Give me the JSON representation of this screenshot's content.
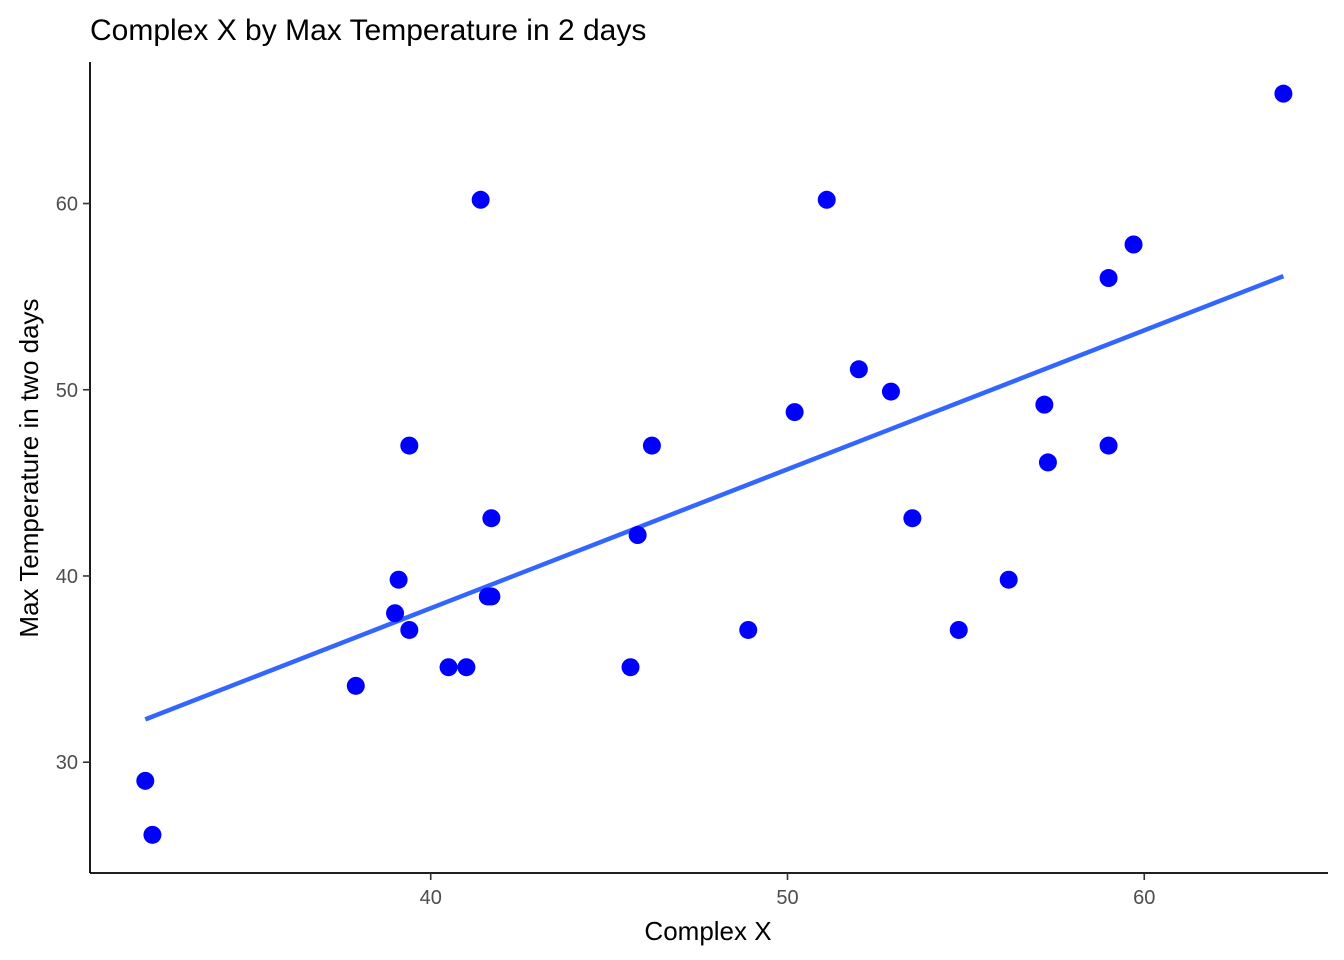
{
  "chart_data": {
    "type": "scatter",
    "title": "Complex X by Max Temperature in 2 days",
    "xlabel": "Complex X",
    "ylabel": "Max Temperature in two days",
    "xlim": [
      30.45,
      65.15
    ],
    "ylim": [
      24.05,
      67.6
    ],
    "xticks": [
      40,
      50,
      60
    ],
    "yticks": [
      30,
      40,
      50,
      60
    ],
    "grid": false,
    "legend": "none",
    "point_color": "#0000ff",
    "line_color": "#3366ff",
    "series": [
      {
        "points": [
          {
            "x": 32.0,
            "y": 29.0
          },
          {
            "x": 32.2,
            "y": 26.1
          },
          {
            "x": 37.9,
            "y": 34.1
          },
          {
            "x": 39.0,
            "y": 38.0
          },
          {
            "x": 39.1,
            "y": 39.8
          },
          {
            "x": 39.4,
            "y": 47.0
          },
          {
            "x": 39.4,
            "y": 37.1
          },
          {
            "x": 40.5,
            "y": 35.1
          },
          {
            "x": 41.0,
            "y": 35.1
          },
          {
            "x": 41.4,
            "y": 60.2
          },
          {
            "x": 41.6,
            "y": 38.9
          },
          {
            "x": 41.7,
            "y": 43.1
          },
          {
            "x": 41.7,
            "y": 38.9
          },
          {
            "x": 45.6,
            "y": 35.1
          },
          {
            "x": 45.8,
            "y": 42.2
          },
          {
            "x": 46.2,
            "y": 47.0
          },
          {
            "x": 48.9,
            "y": 37.1
          },
          {
            "x": 50.2,
            "y": 48.8
          },
          {
            "x": 51.1,
            "y": 60.2
          },
          {
            "x": 52.0,
            "y": 51.1
          },
          {
            "x": 52.9,
            "y": 49.9
          },
          {
            "x": 53.5,
            "y": 43.1
          },
          {
            "x": 54.8,
            "y": 37.1
          },
          {
            "x": 56.2,
            "y": 39.8
          },
          {
            "x": 57.2,
            "y": 49.2
          },
          {
            "x": 57.3,
            "y": 46.1
          },
          {
            "x": 59.0,
            "y": 56.0
          },
          {
            "x": 59.0,
            "y": 47.0
          },
          {
            "x": 59.7,
            "y": 57.8
          },
          {
            "x": 63.9,
            "y": 65.9
          }
        ]
      }
    ],
    "trend_line": {
      "type": "linear",
      "x": [
        32.0,
        63.9
      ],
      "y": [
        32.3,
        56.1
      ]
    }
  }
}
